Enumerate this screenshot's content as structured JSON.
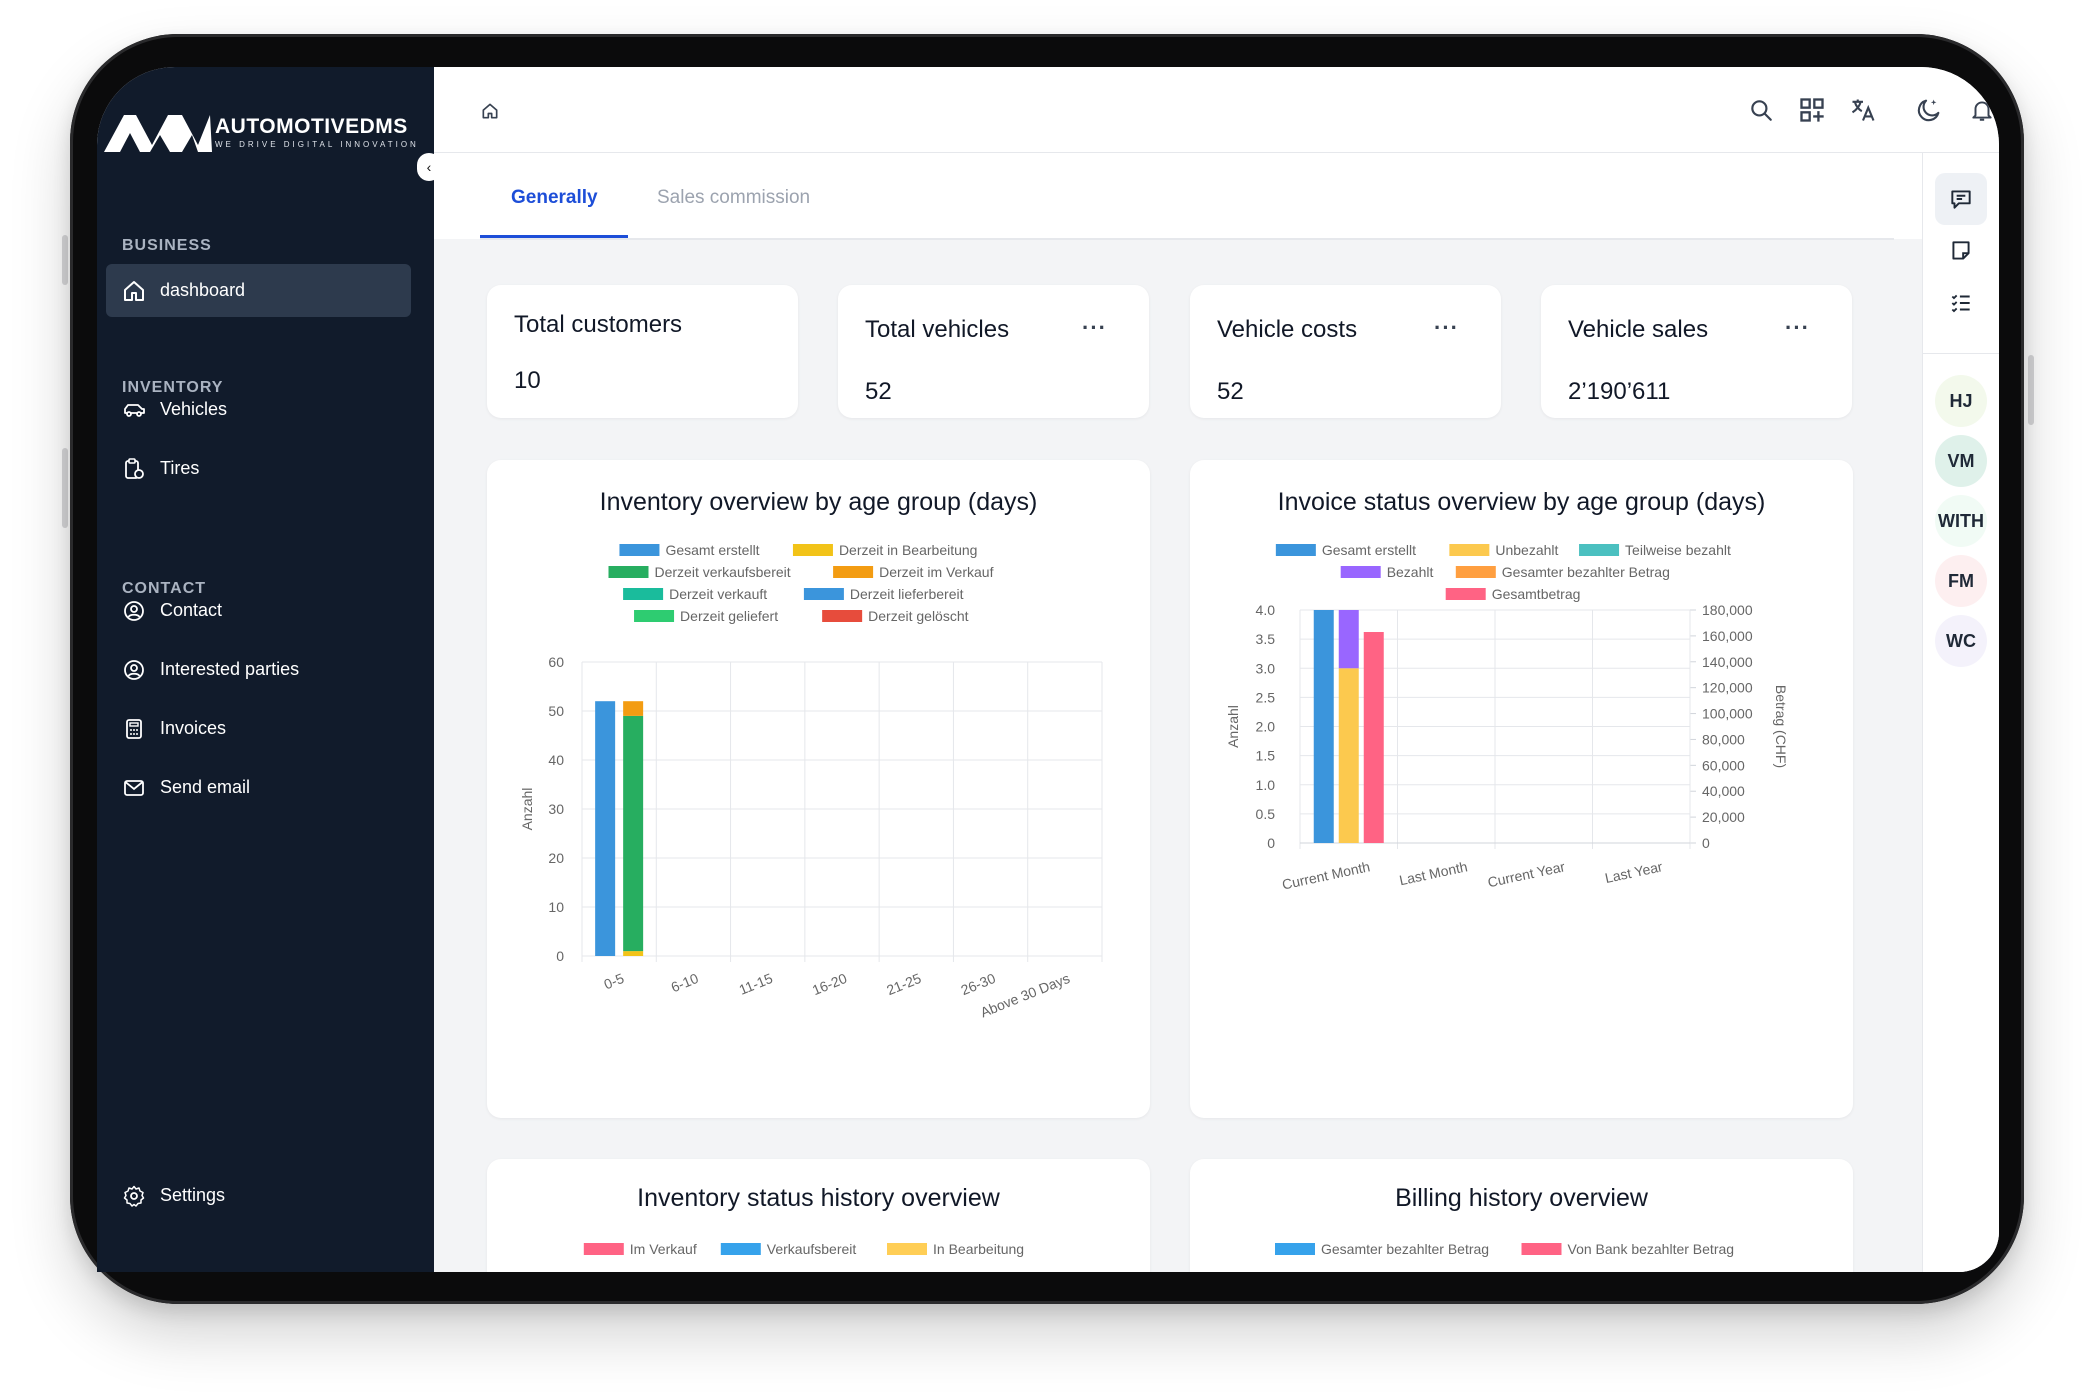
{
  "brand": {
    "name": "AUTOMOTIVEDMS",
    "tagline": "WE DRIVE DIGITAL INNOVATION"
  },
  "sidebar": {
    "sections": [
      {
        "title": "BUSINESS",
        "items": [
          {
            "label": "dashboard",
            "icon": "home-icon",
            "active": true
          }
        ]
      },
      {
        "title": "INVENTORY",
        "items": [
          {
            "label": "Vehicles",
            "icon": "car-icon"
          },
          {
            "label": "Tires",
            "icon": "tire-clipboard-icon"
          }
        ]
      },
      {
        "title": "CONTACT",
        "items": [
          {
            "label": "Contact",
            "icon": "user-circle-icon"
          },
          {
            "label": "Interested parties",
            "icon": "user-circle-icon"
          },
          {
            "label": "Invoices",
            "icon": "calculator-icon"
          },
          {
            "label": "Send email",
            "icon": "mail-icon"
          }
        ]
      }
    ],
    "settings_label": "Settings"
  },
  "topbar": {
    "icons": [
      "home-icon",
      "search-icon",
      "apps-icon",
      "translate-icon",
      "dark-mode-icon",
      "bell-icon",
      "building-avatar-icon"
    ]
  },
  "tabs": [
    {
      "label": "Generally",
      "active": true
    },
    {
      "label": "Sales commission",
      "active": false
    }
  ],
  "stats": [
    {
      "title": "Total customers",
      "value": "10"
    },
    {
      "title": "Total vehicles",
      "value": "52"
    },
    {
      "title": "Vehicle costs",
      "value": "52"
    },
    {
      "title": "Vehicle sales",
      "value": "2’190’611"
    }
  ],
  "rail": {
    "avatars": [
      "HJ",
      "VM",
      "WITH",
      "FM",
      "WC"
    ]
  },
  "colors": {
    "sidebar": "#111b2b",
    "accent": "#1d4ed8"
  },
  "chart_data": [
    {
      "type": "bar",
      "title": "Inventory overview by age group (days)",
      "ylabel": "Anzahl",
      "ylim": [
        0,
        60
      ],
      "yticks": [
        "0",
        "10",
        "20",
        "30",
        "40",
        "50",
        "60"
      ],
      "categories": [
        "0-5",
        "6-10",
        "11-15",
        "16-20",
        "21-25",
        "26-30",
        "Above 30 Days"
      ],
      "legend": [
        {
          "name": "Gesamt erstellt",
          "color": "#3b95dc"
        },
        {
          "name": "Derzeit in Bearbeitung",
          "color": "#f2c318"
        },
        {
          "name": "Derzeit verkaufsbereit",
          "color": "#27ae60"
        },
        {
          "name": "Derzeit im Verkauf",
          "color": "#f39c12"
        },
        {
          "name": "Derzeit verkauft",
          "color": "#1abc9c"
        },
        {
          "name": "Derzeit lieferbereit",
          "color": "#3b95dc"
        },
        {
          "name": "Derzeit geliefert",
          "color": "#2ecc71"
        },
        {
          "name": "Derzeit gelöscht",
          "color": "#e74c3c"
        }
      ],
      "series": [
        {
          "name": "Gesamt erstellt",
          "stack": "a",
          "values": [
            52,
            0,
            0,
            0,
            0,
            0,
            0
          ]
        },
        {
          "name": "Derzeit in Bearbeitung",
          "stack": "b",
          "values": [
            1,
            0,
            0,
            0,
            0,
            0,
            0
          ]
        },
        {
          "name": "Derzeit verkaufsbereit",
          "stack": "b",
          "values": [
            48,
            0,
            0,
            0,
            0,
            0,
            0
          ]
        },
        {
          "name": "Derzeit im Verkauf",
          "stack": "b",
          "values": [
            3,
            0,
            0,
            0,
            0,
            0,
            0
          ]
        }
      ]
    },
    {
      "type": "bar",
      "title": "Invoice status overview by age group (days)",
      "ylabel": "Anzahl",
      "y2label": "Betrag (CHF)",
      "ylim": [
        0,
        4
      ],
      "y2lim": [
        0,
        180000
      ],
      "yticks": [
        "0",
        "0.5",
        "1.0",
        "1.5",
        "2.0",
        "2.5",
        "3.0",
        "3.5",
        "4.0"
      ],
      "y2ticks": [
        "0",
        "20,000",
        "40,000",
        "60,000",
        "80,000",
        "100,000",
        "120,000",
        "140,000",
        "160,000",
        "180,000"
      ],
      "categories": [
        "Current Month",
        "Last Month",
        "Current Year",
        "Last Year"
      ],
      "legend": [
        {
          "name": "Gesamt erstellt",
          "color": "#3b95dc"
        },
        {
          "name": "Unbezahlt",
          "color": "#fcc94e"
        },
        {
          "name": "Teilweise bezahlt",
          "color": "#4bc0c0"
        },
        {
          "name": "Bezahlt",
          "color": "#9966ff"
        },
        {
          "name": "Gesamter bezahlter Betrag",
          "color": "#ff9f40"
        },
        {
          "name": "Gesamtbetrag",
          "color": "#ff6384"
        }
      ],
      "series": [
        {
          "name": "Gesamt erstellt",
          "stack": "a",
          "axis": "y",
          "values": [
            4,
            0,
            0,
            0
          ]
        },
        {
          "name": "Unbezahlt",
          "stack": "b",
          "axis": "y",
          "values": [
            3,
            0,
            0,
            0
          ]
        },
        {
          "name": "Bezahlt",
          "stack": "b",
          "axis": "y",
          "values": [
            1,
            0,
            0,
            0
          ]
        },
        {
          "name": "Gesamtbetrag",
          "stack": "c",
          "axis": "y2",
          "values": [
            163000,
            0,
            0,
            0
          ]
        }
      ]
    },
    {
      "type": "bar",
      "title": "Inventory status history overview",
      "legend": [
        {
          "name": "Im Verkauf",
          "color": "#ff6384"
        },
        {
          "name": "Verkaufsbereit",
          "color": "#36a2eb"
        },
        {
          "name": "In Bearbeitung",
          "color": "#ffce56"
        }
      ]
    },
    {
      "type": "bar",
      "title": "Billing history overview",
      "legend": [
        {
          "name": "Gesamter bezahlter Betrag",
          "color": "#36a2eb"
        },
        {
          "name": "Von Bank bezahlter Betrag",
          "color": "#ff6384"
        }
      ]
    }
  ]
}
